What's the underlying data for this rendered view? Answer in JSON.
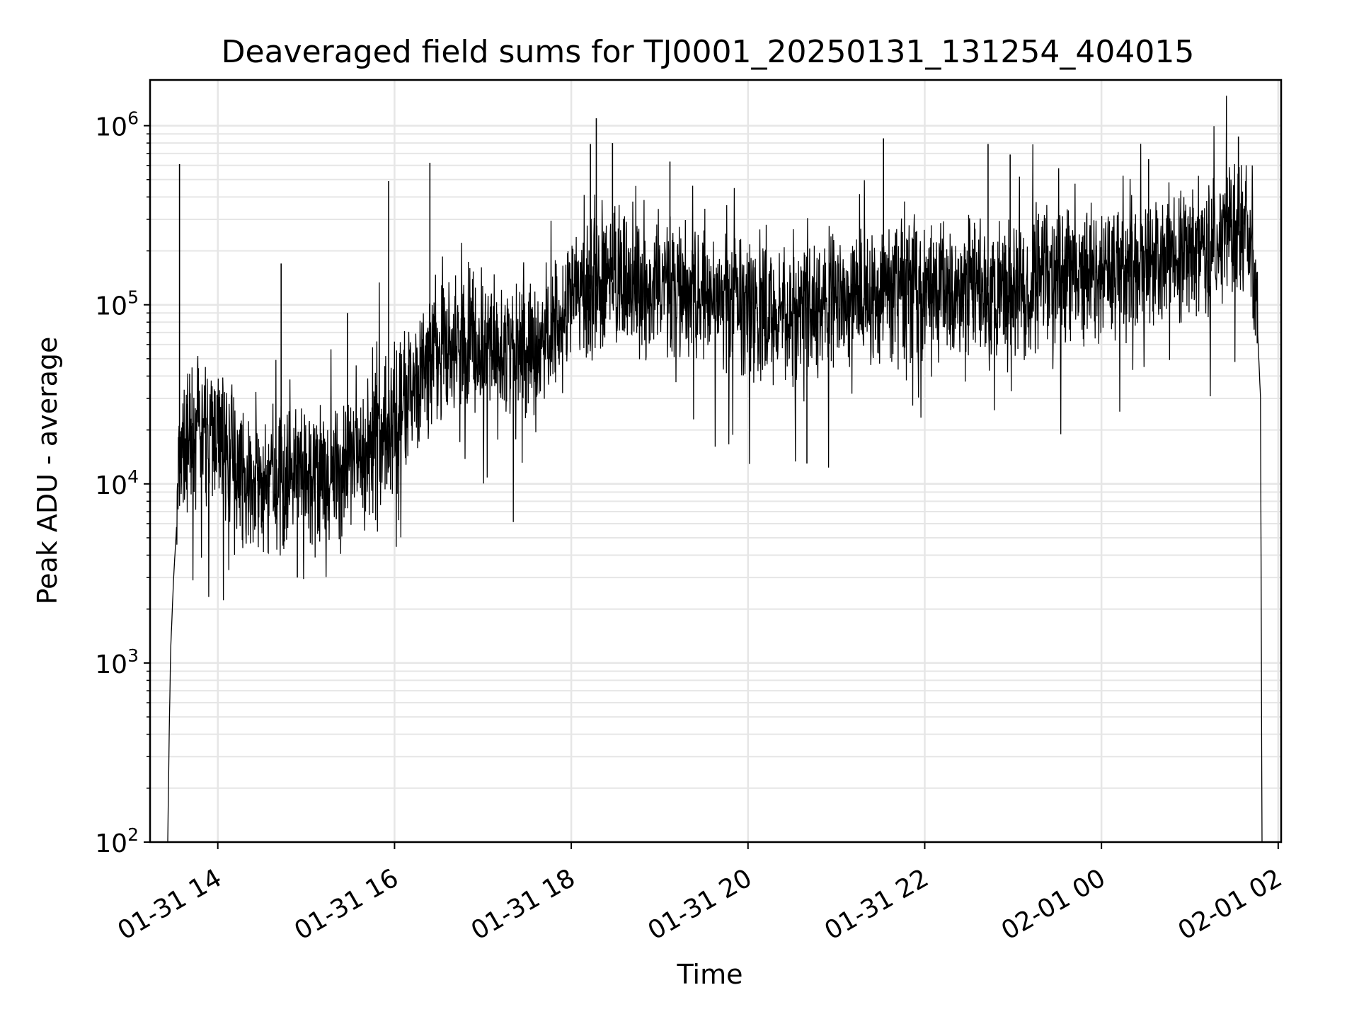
{
  "chart_data": {
    "type": "line",
    "title": "Deaveraged field sums for TJ0001_20250131_131254_404015",
    "xlabel": "Time",
    "ylabel": "Peak ADU - average",
    "y_scale": "log",
    "ylim": [
      100,
      1800000
    ],
    "xlim": [
      "2025-01-31 13:14",
      "2025-02-01 02:02"
    ],
    "grid": "both-major-and-minor",
    "line_color": "#000000",
    "x_ticks": [
      {
        "t": "2025-01-31 14:00",
        "label": "01-31 14"
      },
      {
        "t": "2025-01-31 16:00",
        "label": "01-31 16"
      },
      {
        "t": "2025-01-31 18:00",
        "label": "01-31 18"
      },
      {
        "t": "2025-01-31 20:00",
        "label": "01-31 20"
      },
      {
        "t": "2025-01-31 22:00",
        "label": "01-31 22"
      },
      {
        "t": "2025-02-01 00:00",
        "label": "02-01 00"
      },
      {
        "t": "2025-02-01 02:00",
        "label": "02-01 02"
      }
    ],
    "y_ticks": [
      {
        "value": 100,
        "base": "10",
        "exp": "2"
      },
      {
        "value": 1000,
        "base": "10",
        "exp": "3"
      },
      {
        "value": 10000,
        "base": "10",
        "exp": "4"
      },
      {
        "value": 100000,
        "base": "10",
        "exp": "5"
      },
      {
        "value": 1000000,
        "base": "10",
        "exp": "6"
      }
    ],
    "series": [
      {
        "x": [
          "2025-01-31 13:26",
          "2025-01-31 13:27",
          "2025-01-31 13:28",
          "2025-01-31 13:30",
          "2025-01-31 13:33",
          "2025-01-31 13:36",
          "2025-01-31 13:40",
          "2025-01-31 13:45",
          "2025-01-31 14:00",
          "2025-01-31 14:20",
          "2025-01-31 14:40",
          "2025-01-31 15:00",
          "2025-01-31 15:20",
          "2025-01-31 15:40",
          "2025-01-31 15:55",
          "2025-01-31 16:10",
          "2025-01-31 16:30",
          "2025-01-31 16:50",
          "2025-01-31 17:10",
          "2025-01-31 17:30",
          "2025-01-31 17:50",
          "2025-01-31 18:10",
          "2025-01-31 18:30",
          "2025-01-31 19:00",
          "2025-01-31 19:30",
          "2025-01-31 20:00",
          "2025-01-31 20:30",
          "2025-01-31 21:00",
          "2025-01-31 21:30",
          "2025-01-31 22:00",
          "2025-01-31 22:30",
          "2025-01-31 23:00",
          "2025-01-31 23:30",
          "2025-02-01 00:00",
          "2025-02-01 00:30",
          "2025-02-01 01:00",
          "2025-02-01 01:20",
          "2025-02-01 01:35",
          "2025-02-01 01:40",
          "2025-02-01 01:45",
          "2025-02-01 01:48",
          "2025-02-01 01:49"
        ],
        "y": [
          100,
          400,
          1200,
          3000,
          8000,
          14000,
          18000,
          20000,
          18000,
          11000,
          10000,
          11000,
          12000,
          14000,
          20000,
          35000,
          55000,
          60000,
          55000,
          55000,
          80000,
          120000,
          140000,
          130000,
          115000,
          90000,
          95000,
          100000,
          115000,
          120000,
          125000,
          130000,
          140000,
          150000,
          170000,
          190000,
          240000,
          280000,
          220000,
          110000,
          30000,
          100
        ]
      }
    ],
    "spikes": [
      {
        "t": "2025-01-31 13:34",
        "y": 610000
      },
      {
        "t": "2025-01-31 14:43",
        "y": 170000
      },
      {
        "t": "2025-01-31 15:28",
        "y": 90000
      },
      {
        "t": "2025-01-31 15:56",
        "y": 490000
      },
      {
        "t": "2025-01-31 16:24",
        "y": 620000
      },
      {
        "t": "2025-01-31 18:17",
        "y": 1100000
      },
      {
        "t": "2025-01-31 18:13",
        "y": 790000
      },
      {
        "t": "2025-01-31 18:28",
        "y": 800000
      },
      {
        "t": "2025-01-31 19:07",
        "y": 630000
      },
      {
        "t": "2025-01-31 21:32",
        "y": 850000
      },
      {
        "t": "2025-01-31 22:43",
        "y": 790000
      },
      {
        "t": "2025-01-31 22:58",
        "y": 690000
      },
      {
        "t": "2025-02-01 00:32",
        "y": 650000
      },
      {
        "t": "2025-02-01 01:33",
        "y": 870000
      },
      {
        "t": "2025-01-31 20:40",
        "y": 13000
      },
      {
        "t": "2025-01-31 14:54",
        "y": 3000
      }
    ]
  }
}
